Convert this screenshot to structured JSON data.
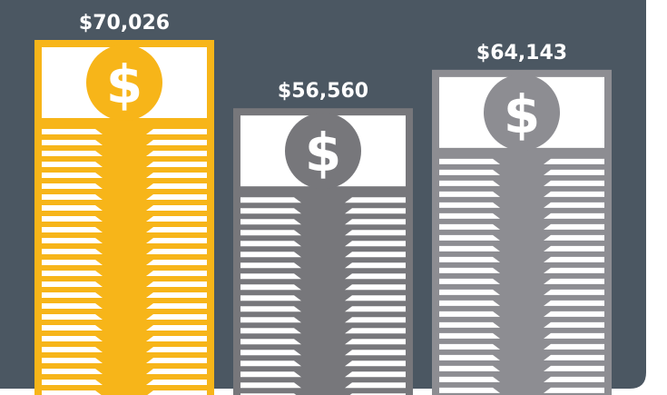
{
  "chart_data": {
    "type": "bar",
    "values": [
      70026,
      56560,
      64143
    ],
    "value_labels": [
      "$70,026",
      "$56,560",
      "$64,143"
    ],
    "colors": [
      "#f7b519",
      "#77777b",
      "#8d8d92"
    ],
    "coin_symbol": "$"
  }
}
